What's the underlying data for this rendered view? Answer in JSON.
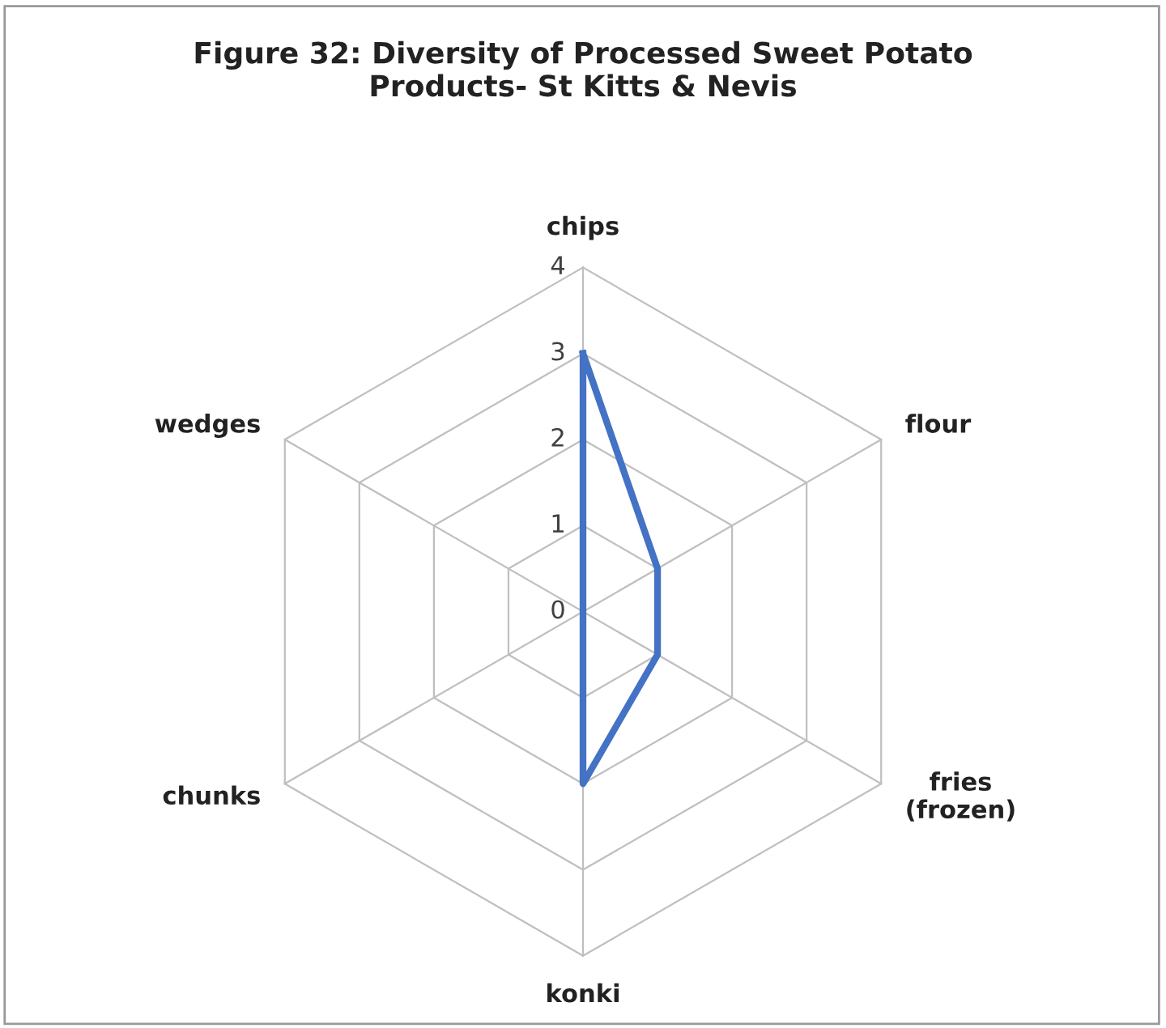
{
  "chart_data": {
    "type": "radar",
    "title": "Figure 32: Diversity of Processed Sweet Potato\nProducts- St Kitts & Nevis",
    "categories": [
      "chips",
      "flour",
      "fries\n(frozen)",
      "konki",
      "chunks",
      "wedges"
    ],
    "series": [
      {
        "color": "#4472c4",
        "values": [
          3,
          1,
          1,
          2,
          0,
          0
        ]
      }
    ],
    "ylim": [
      0,
      4
    ],
    "yticks": [
      0,
      1,
      2,
      3,
      4
    ],
    "grid": true,
    "marker": "none",
    "line_style": "solid",
    "legend": false
  }
}
